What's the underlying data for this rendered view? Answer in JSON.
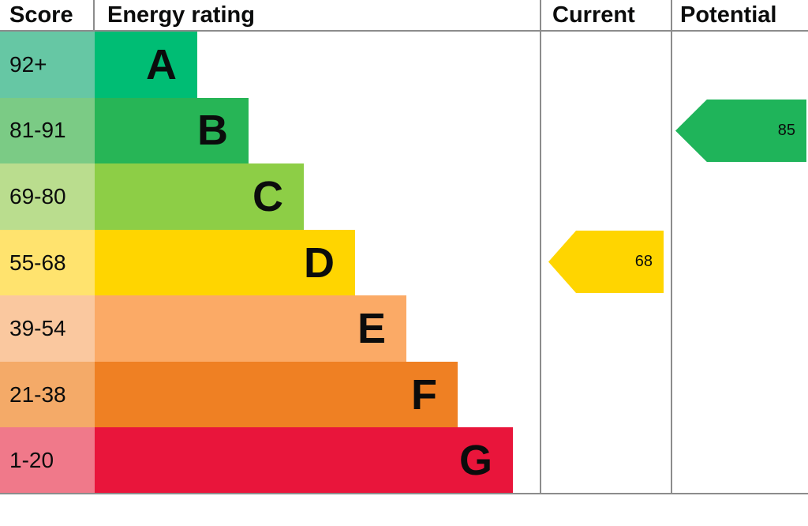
{
  "header": {
    "score": "Score",
    "energy_rating": "Energy rating",
    "current": "Current",
    "potential": "Potential"
  },
  "bands": [
    {
      "letter": "A",
      "score": "92+",
      "bar_bg": "#00bd74",
      "score_bg": "#66c7a4"
    },
    {
      "letter": "B",
      "score": "81-91",
      "bar_bg": "#27b556",
      "score_bg": "#7bcb85"
    },
    {
      "letter": "C",
      "score": "69-80",
      "bar_bg": "#8dce46",
      "score_bg": "#badd8e"
    },
    {
      "letter": "D",
      "score": "55-68",
      "bar_bg": "#ffd500",
      "score_bg": "#ffe36e"
    },
    {
      "letter": "E",
      "score": "39-54",
      "bar_bg": "#fbaa66",
      "score_bg": "#fac89f"
    },
    {
      "letter": "F",
      "score": "21-38",
      "bar_bg": "#ef8023",
      "score_bg": "#f4aa68"
    },
    {
      "letter": "G",
      "score": "1-20",
      "bar_bg": "#e9153b",
      "score_bg": "#f0798a"
    }
  ],
  "current": {
    "value": "68",
    "band": "D",
    "color": "#ffd500"
  },
  "potential": {
    "value": "85",
    "band": "B",
    "color": "#1fb45a"
  },
  "chart_data": {
    "type": "bar",
    "title": "Energy rating",
    "categories": [
      "A",
      "B",
      "C",
      "D",
      "E",
      "F",
      "G"
    ],
    "score_ranges": [
      "92+",
      "81-91",
      "69-80",
      "55-68",
      "39-54",
      "21-38",
      "1-20"
    ],
    "band_colors": [
      "#00bd74",
      "#27b556",
      "#8dce46",
      "#ffd500",
      "#fbaa66",
      "#ef8023",
      "#e9153b"
    ],
    "bar_relative_lengths": [
      1.0,
      1.5,
      2.04,
      2.54,
      3.04,
      3.54,
      4.08
    ],
    "legend_position": "none",
    "grid": false,
    "current": {
      "value": 68,
      "band": "D"
    },
    "potential": {
      "value": 85,
      "band": "B"
    }
  }
}
